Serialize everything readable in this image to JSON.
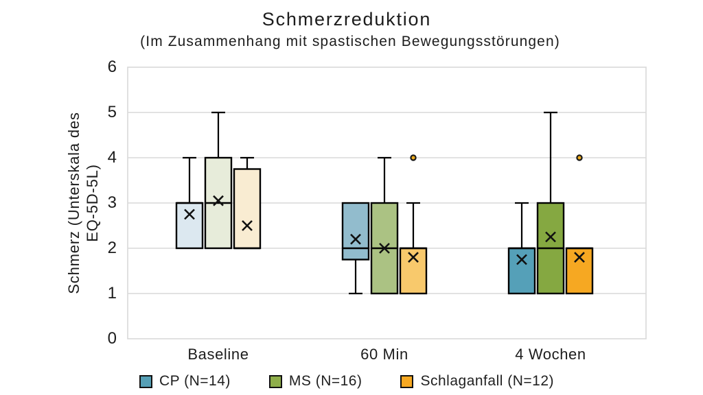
{
  "header": {
    "title": "Schmerzreduktion",
    "subtitle": "(Im Zusammenhang mit spastischen Bewegungsstörungen)"
  },
  "chart_data": {
    "type": "boxplot",
    "title": "Schmerzreduktion",
    "subtitle": "(Im Zusammenhang mit spastischen Bewegungsstörungen)",
    "ylabel": "Schmerz (Unterskala des EQ-5D-5L)",
    "ylabel_lines": [
      "Schmerz (Unterskala des",
      "EQ-5D-5L)"
    ],
    "xlabel": "",
    "ylim": [
      0,
      6
    ],
    "yticks": [
      0,
      1,
      2,
      3,
      4,
      5,
      6
    ],
    "grid": "horizontal",
    "legend_position": "bottom",
    "categories": [
      "Baseline",
      "60 Min",
      "4 Wochen"
    ],
    "series": [
      {
        "name": "CP (N=14)",
        "legend_color": "#569fb5",
        "fills_by_category": [
          "#dce8f0",
          "#92bccd",
          "#55a0b8"
        ],
        "boxes": [
          {
            "category": "Baseline",
            "min": 2,
            "q1": 2,
            "median": 3,
            "q3": 3,
            "max": 4,
            "mean": 2.75,
            "outliers": []
          },
          {
            "category": "60 Min",
            "min": 1,
            "q1": 1.75,
            "median": 2,
            "q3": 3,
            "max": 3,
            "mean": 2.2,
            "outliers": []
          },
          {
            "category": "4 Wochen",
            "min": 1,
            "q1": 1,
            "median": 2,
            "q3": 2,
            "max": 3,
            "mean": 1.75,
            "outliers": []
          }
        ]
      },
      {
        "name": "MS (N=16)",
        "legend_color": "#8fae4a",
        "fills_by_category": [
          "#e7ecda",
          "#abc283",
          "#85a841"
        ],
        "boxes": [
          {
            "category": "Baseline",
            "min": 2,
            "q1": 2,
            "median": 3,
            "q3": 4,
            "max": 5,
            "mean": 3.05,
            "outliers": []
          },
          {
            "category": "60 Min",
            "min": 1,
            "q1": 1,
            "median": 2,
            "q3": 3,
            "max": 4,
            "mean": 2.0,
            "outliers": []
          },
          {
            "category": "4 Wochen",
            "min": 1,
            "q1": 1,
            "median": 2,
            "q3": 3,
            "max": 5,
            "mean": 2.25,
            "outliers": []
          }
        ]
      },
      {
        "name": "Schlaganfall (N=12)",
        "legend_color": "#f6a822",
        "fills_by_category": [
          "#f9ecd2",
          "#f8c96c",
          "#f6a822"
        ],
        "boxes": [
          {
            "category": "Baseline",
            "min": 2,
            "q1": 2,
            "median": 2,
            "q3": 3.75,
            "max": 4,
            "mean": 2.5,
            "outliers": []
          },
          {
            "category": "60 Min",
            "min": 1,
            "q1": 1,
            "median": 2,
            "q3": 2,
            "max": 3,
            "mean": 1.8,
            "outliers": [
              4
            ]
          },
          {
            "category": "4 Wochen",
            "min": 1,
            "q1": 1,
            "median": 2,
            "q3": 2,
            "max": 2,
            "mean": 1.8,
            "outliers": [
              4
            ]
          }
        ]
      }
    ],
    "colors": {
      "grid": "#d9d9d9",
      "box_stroke": "#000000",
      "mean_marker": "#111111",
      "outlier_fill": "#f0ad1e",
      "outlier_stroke": "#1a1a1a",
      "text": "#1c1c1c"
    }
  }
}
